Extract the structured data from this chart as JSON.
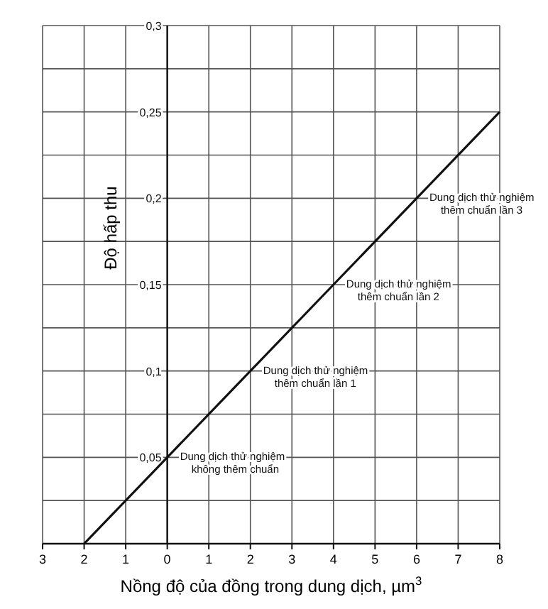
{
  "chart_data": {
    "type": "line",
    "xlabel": "Nồng độ của đồng trong dung dịch, µm$^{3}$",
    "ylabel": "Độ hấp thu",
    "series": [
      {
        "color": "#111111",
        "x": [
          -2,
          0,
          2,
          4,
          6,
          8
        ],
        "values": [
          0,
          0.05,
          0.1,
          0.15,
          0.2,
          0.25
        ]
      }
    ],
    "xlim": [
      -3,
      8
    ],
    "xticks": [
      {
        "value": -3,
        "label": "3"
      },
      {
        "value": -2,
        "label": "2"
      },
      {
        "value": -1,
        "label": "1"
      },
      0,
      1,
      2,
      3,
      4,
      5,
      6,
      7,
      8
    ],
    "ylim": [
      0,
      0.3
    ],
    "yticks": [
      {
        "value": 0.025,
        "label": null
      },
      {
        "value": 0.05,
        "label": "0,05"
      },
      {
        "value": 0.075,
        "label": null
      },
      {
        "value": 0.1,
        "label": "0,1"
      },
      {
        "value": 0.125,
        "label": null
      },
      {
        "value": 0.15,
        "label": "0,15"
      },
      {
        "value": 0.175,
        "label": null
      },
      {
        "value": 0.2,
        "label": "0,2"
      },
      {
        "value": 0.225,
        "label": null
      },
      {
        "value": 0.25,
        "label": "0,25"
      },
      {
        "value": 0.275,
        "label": null
      },
      {
        "value": 0.3,
        "label": "0,3"
      }
    ],
    "grid": true,
    "marker": "none",
    "line_style": "solid",
    "annotations": [
      {
        "text": "Dung dịch thử nghiệm\nkhông thêm chuẩn",
        "x": 0,
        "y": 0.05
      },
      {
        "text": "Dung dịch thử nghiệm\nthêm chuẩn lần 1",
        "x": 2,
        "y": 0.1
      },
      {
        "text": "Dung dịch thử nghiệm\nthêm chuẩn lần 2",
        "x": 4,
        "y": 0.15
      },
      {
        "text": "Dung dịch thử nghiệm\nthêm chuẩn lần 3",
        "x": 6,
        "y": 0.2
      }
    ]
  }
}
